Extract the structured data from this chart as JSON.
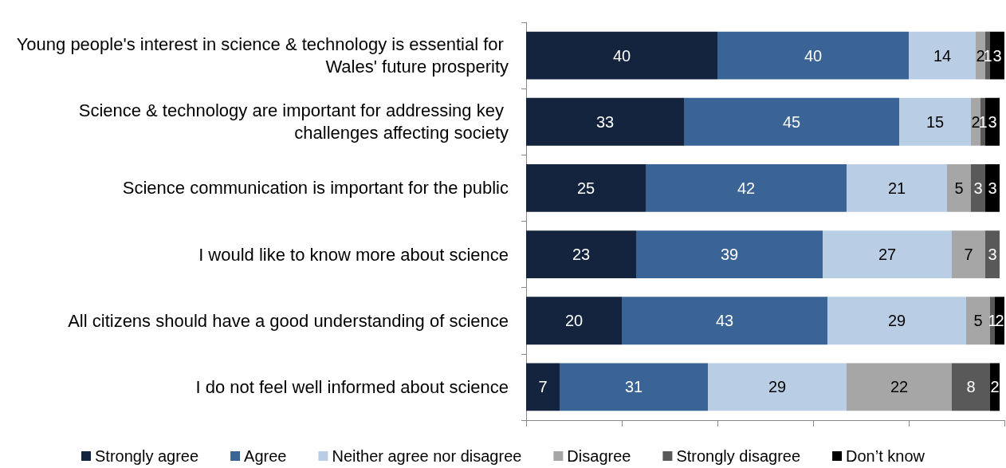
{
  "chart_data": {
    "type": "bar",
    "orientation": "horizontal",
    "stacked": true,
    "data_labels": true,
    "grid": false,
    "legend": "bottom",
    "tick_labels": "y",
    "categories": [
      "Young people's interest in science & technology is essential for Wales' future prosperity",
      "Science & technology are important for addressing key challenges affecting society",
      "Science communication is important for the public",
      "I would like to know more about science",
      "All citizens should have a good understanding of science",
      "I do not feel well informed about science"
    ],
    "xlim": [
      0,
      100
    ],
    "xticks": [
      {
        "value": 0,
        "label": null
      },
      {
        "value": 20,
        "label": null
      },
      {
        "value": 40,
        "label": null
      },
      {
        "value": 60,
        "label": null
      },
      {
        "value": 80,
        "label": null
      },
      {
        "value": 100,
        "label": null
      }
    ],
    "series": [
      {
        "name": "Strongly agree",
        "color": "#14243f",
        "values": [
          40,
          33,
          25,
          23,
          20,
          7
        ]
      },
      {
        "name": "Agree",
        "color": "#3a6496",
        "values": [
          40,
          45,
          42,
          39,
          43,
          31
        ]
      },
      {
        "name": "Neither agree nor disagree",
        "color": "#b9cde5",
        "values": [
          14,
          15,
          21,
          27,
          29,
          29
        ]
      },
      {
        "name": "Disagree",
        "color": "#a6a6a6",
        "values": [
          2,
          2,
          5,
          7,
          5,
          22
        ]
      },
      {
        "name": "Strongly disagree",
        "color": "#595959",
        "values": [
          1,
          1,
          3,
          3,
          1,
          8
        ]
      },
      {
        "name": "Don’t know",
        "color": "#000000",
        "values": [
          3,
          3,
          3,
          null,
          2,
          2
        ]
      }
    ]
  }
}
